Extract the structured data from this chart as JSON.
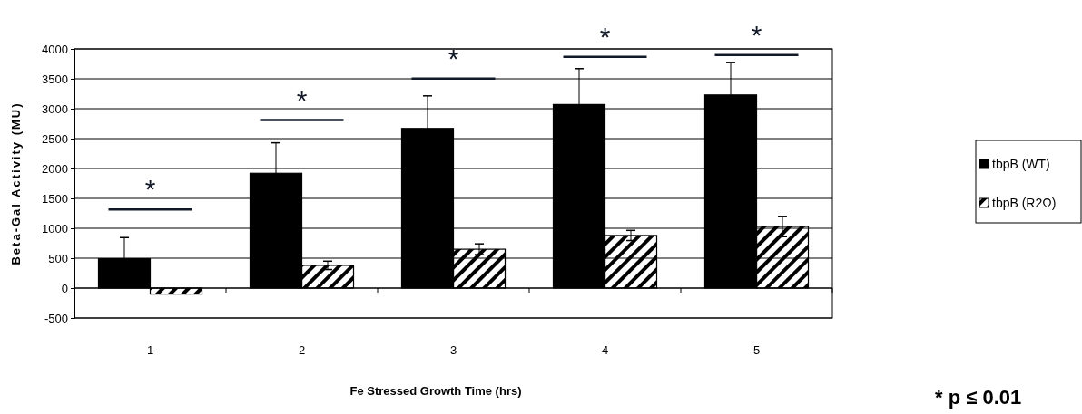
{
  "chart_data": {
    "type": "bar",
    "xlabel": "Fe Stressed Growth Time (hrs)",
    "ylabel": "Beta-Gal Activity (MU)",
    "categories": [
      "1",
      "2",
      "3",
      "4",
      "5"
    ],
    "series": [
      {
        "name": "tbpB (WT)",
        "color": "#000000",
        "values": [
          490,
          1920,
          2670,
          3070,
          3230
        ],
        "errors": [
          [
            490,
            845
          ],
          [
            1920,
            2430
          ],
          [
            2670,
            3215
          ],
          [
            3070,
            3670
          ],
          [
            3230,
            3775
          ]
        ]
      },
      {
        "name": "tbpB (R2Ω)",
        "color": "#000000",
        "values": [
          -100,
          380,
          650,
          880,
          1030
        ],
        "errors": [
          null,
          70,
          90,
          85,
          170
        ]
      }
    ],
    "ylim": [
      -500,
      4000
    ],
    "yticks": [
      -500,
      0,
      500,
      1000,
      1500,
      2000,
      2500,
      3000,
      3500,
      4000
    ],
    "grid": "y",
    "legend": "right",
    "annotations": [
      "*",
      "*",
      "*",
      "*",
      "*",
      "* p ≤ 0.01"
    ]
  }
}
